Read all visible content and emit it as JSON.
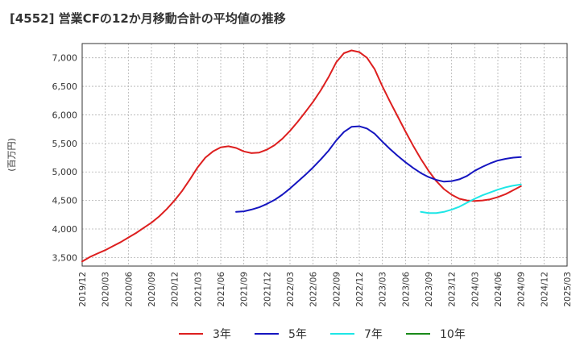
{
  "chart_data": {
    "type": "line",
    "title": "[4552]  営業CFの12か月移動合計の平均値の推移",
    "ylabel": "(百万円)",
    "xlabel": "",
    "ylim": [
      3350,
      7250
    ],
    "yticks": [
      3500,
      4000,
      4500,
      5000,
      5500,
      6000,
      6500,
      7000
    ],
    "ytick_labels": [
      "3,500",
      "4,000",
      "4,500",
      "5,000",
      "5,500",
      "6,000",
      "6,500",
      "7,000"
    ],
    "xticks": [
      "2019/12",
      "2020/03",
      "2020/06",
      "2020/09",
      "2020/12",
      "2021/03",
      "2021/06",
      "2021/09",
      "2021/12",
      "2022/03",
      "2022/06",
      "2022/09",
      "2022/12",
      "2023/03",
      "2023/06",
      "2023/09",
      "2023/12",
      "2024/03",
      "2024/06",
      "2024/09",
      "2024/12",
      "2025/03"
    ],
    "grid": true,
    "legend_position": "bottom",
    "series": [
      {
        "name": "3年",
        "color": "#dd1f1f",
        "x": [
          "2019/12",
          "2020/01",
          "2020/02",
          "2020/03",
          "2020/04",
          "2020/05",
          "2020/06",
          "2020/07",
          "2020/08",
          "2020/09",
          "2020/10",
          "2020/11",
          "2020/12",
          "2021/01",
          "2021/02",
          "2021/03",
          "2021/04",
          "2021/05",
          "2021/06",
          "2021/07",
          "2021/08",
          "2021/09",
          "2021/10",
          "2021/11",
          "2021/12",
          "2022/01",
          "2022/02",
          "2022/03",
          "2022/04",
          "2022/05",
          "2022/06",
          "2022/07",
          "2022/08",
          "2022/09",
          "2022/10",
          "2022/11",
          "2022/12",
          "2023/01",
          "2023/02",
          "2023/03",
          "2023/04",
          "2023/05",
          "2023/06",
          "2023/07",
          "2023/08",
          "2023/09",
          "2023/10",
          "2023/11",
          "2023/12",
          "2024/01",
          "2024/02",
          "2024/03",
          "2024/04",
          "2024/05",
          "2024/06",
          "2024/07",
          "2024/08",
          "2024/09"
        ],
        "values": [
          3430,
          3510,
          3570,
          3630,
          3700,
          3770,
          3850,
          3930,
          4020,
          4110,
          4220,
          4350,
          4500,
          4670,
          4870,
          5080,
          5250,
          5360,
          5430,
          5450,
          5420,
          5360,
          5330,
          5340,
          5390,
          5470,
          5580,
          5720,
          5880,
          6050,
          6230,
          6430,
          6660,
          6920,
          7080,
          7130,
          7100,
          7000,
          6800,
          6500,
          6230,
          5970,
          5710,
          5460,
          5230,
          5020,
          4840,
          4700,
          4600,
          4530,
          4500,
          4490,
          4500,
          4520,
          4560,
          4610,
          4680,
          4750
        ]
      },
      {
        "name": "5年",
        "color": "#1515c0",
        "x": [
          "2021/08",
          "2021/09",
          "2021/10",
          "2021/11",
          "2021/12",
          "2022/01",
          "2022/02",
          "2022/03",
          "2022/04",
          "2022/05",
          "2022/06",
          "2022/07",
          "2022/08",
          "2022/09",
          "2022/10",
          "2022/11",
          "2022/12",
          "2023/01",
          "2023/02",
          "2023/03",
          "2023/04",
          "2023/05",
          "2023/06",
          "2023/07",
          "2023/08",
          "2023/09",
          "2023/10",
          "2023/11",
          "2023/12",
          "2024/01",
          "2024/02",
          "2024/03",
          "2024/04",
          "2024/05",
          "2024/06",
          "2024/07",
          "2024/08",
          "2024/09"
        ],
        "values": [
          4300,
          4310,
          4340,
          4380,
          4440,
          4510,
          4600,
          4710,
          4830,
          4950,
          5080,
          5220,
          5370,
          5550,
          5700,
          5790,
          5800,
          5760,
          5670,
          5530,
          5400,
          5280,
          5170,
          5070,
          4980,
          4910,
          4860,
          4830,
          4840,
          4870,
          4930,
          5020,
          5090,
          5150,
          5200,
          5230,
          5250,
          5260
        ]
      },
      {
        "name": "7年",
        "color": "#1ee6e6",
        "x": [
          "2023/08",
          "2023/09",
          "2023/10",
          "2023/11",
          "2023/12",
          "2024/01",
          "2024/02",
          "2024/03",
          "2024/04",
          "2024/05",
          "2024/06",
          "2024/07",
          "2024/08",
          "2024/09"
        ],
        "values": [
          4300,
          4280,
          4280,
          4300,
          4340,
          4390,
          4460,
          4530,
          4590,
          4640,
          4690,
          4730,
          4760,
          4780
        ]
      },
      {
        "name": "10年",
        "color": "#1a8a1a",
        "x": [],
        "values": []
      }
    ]
  }
}
